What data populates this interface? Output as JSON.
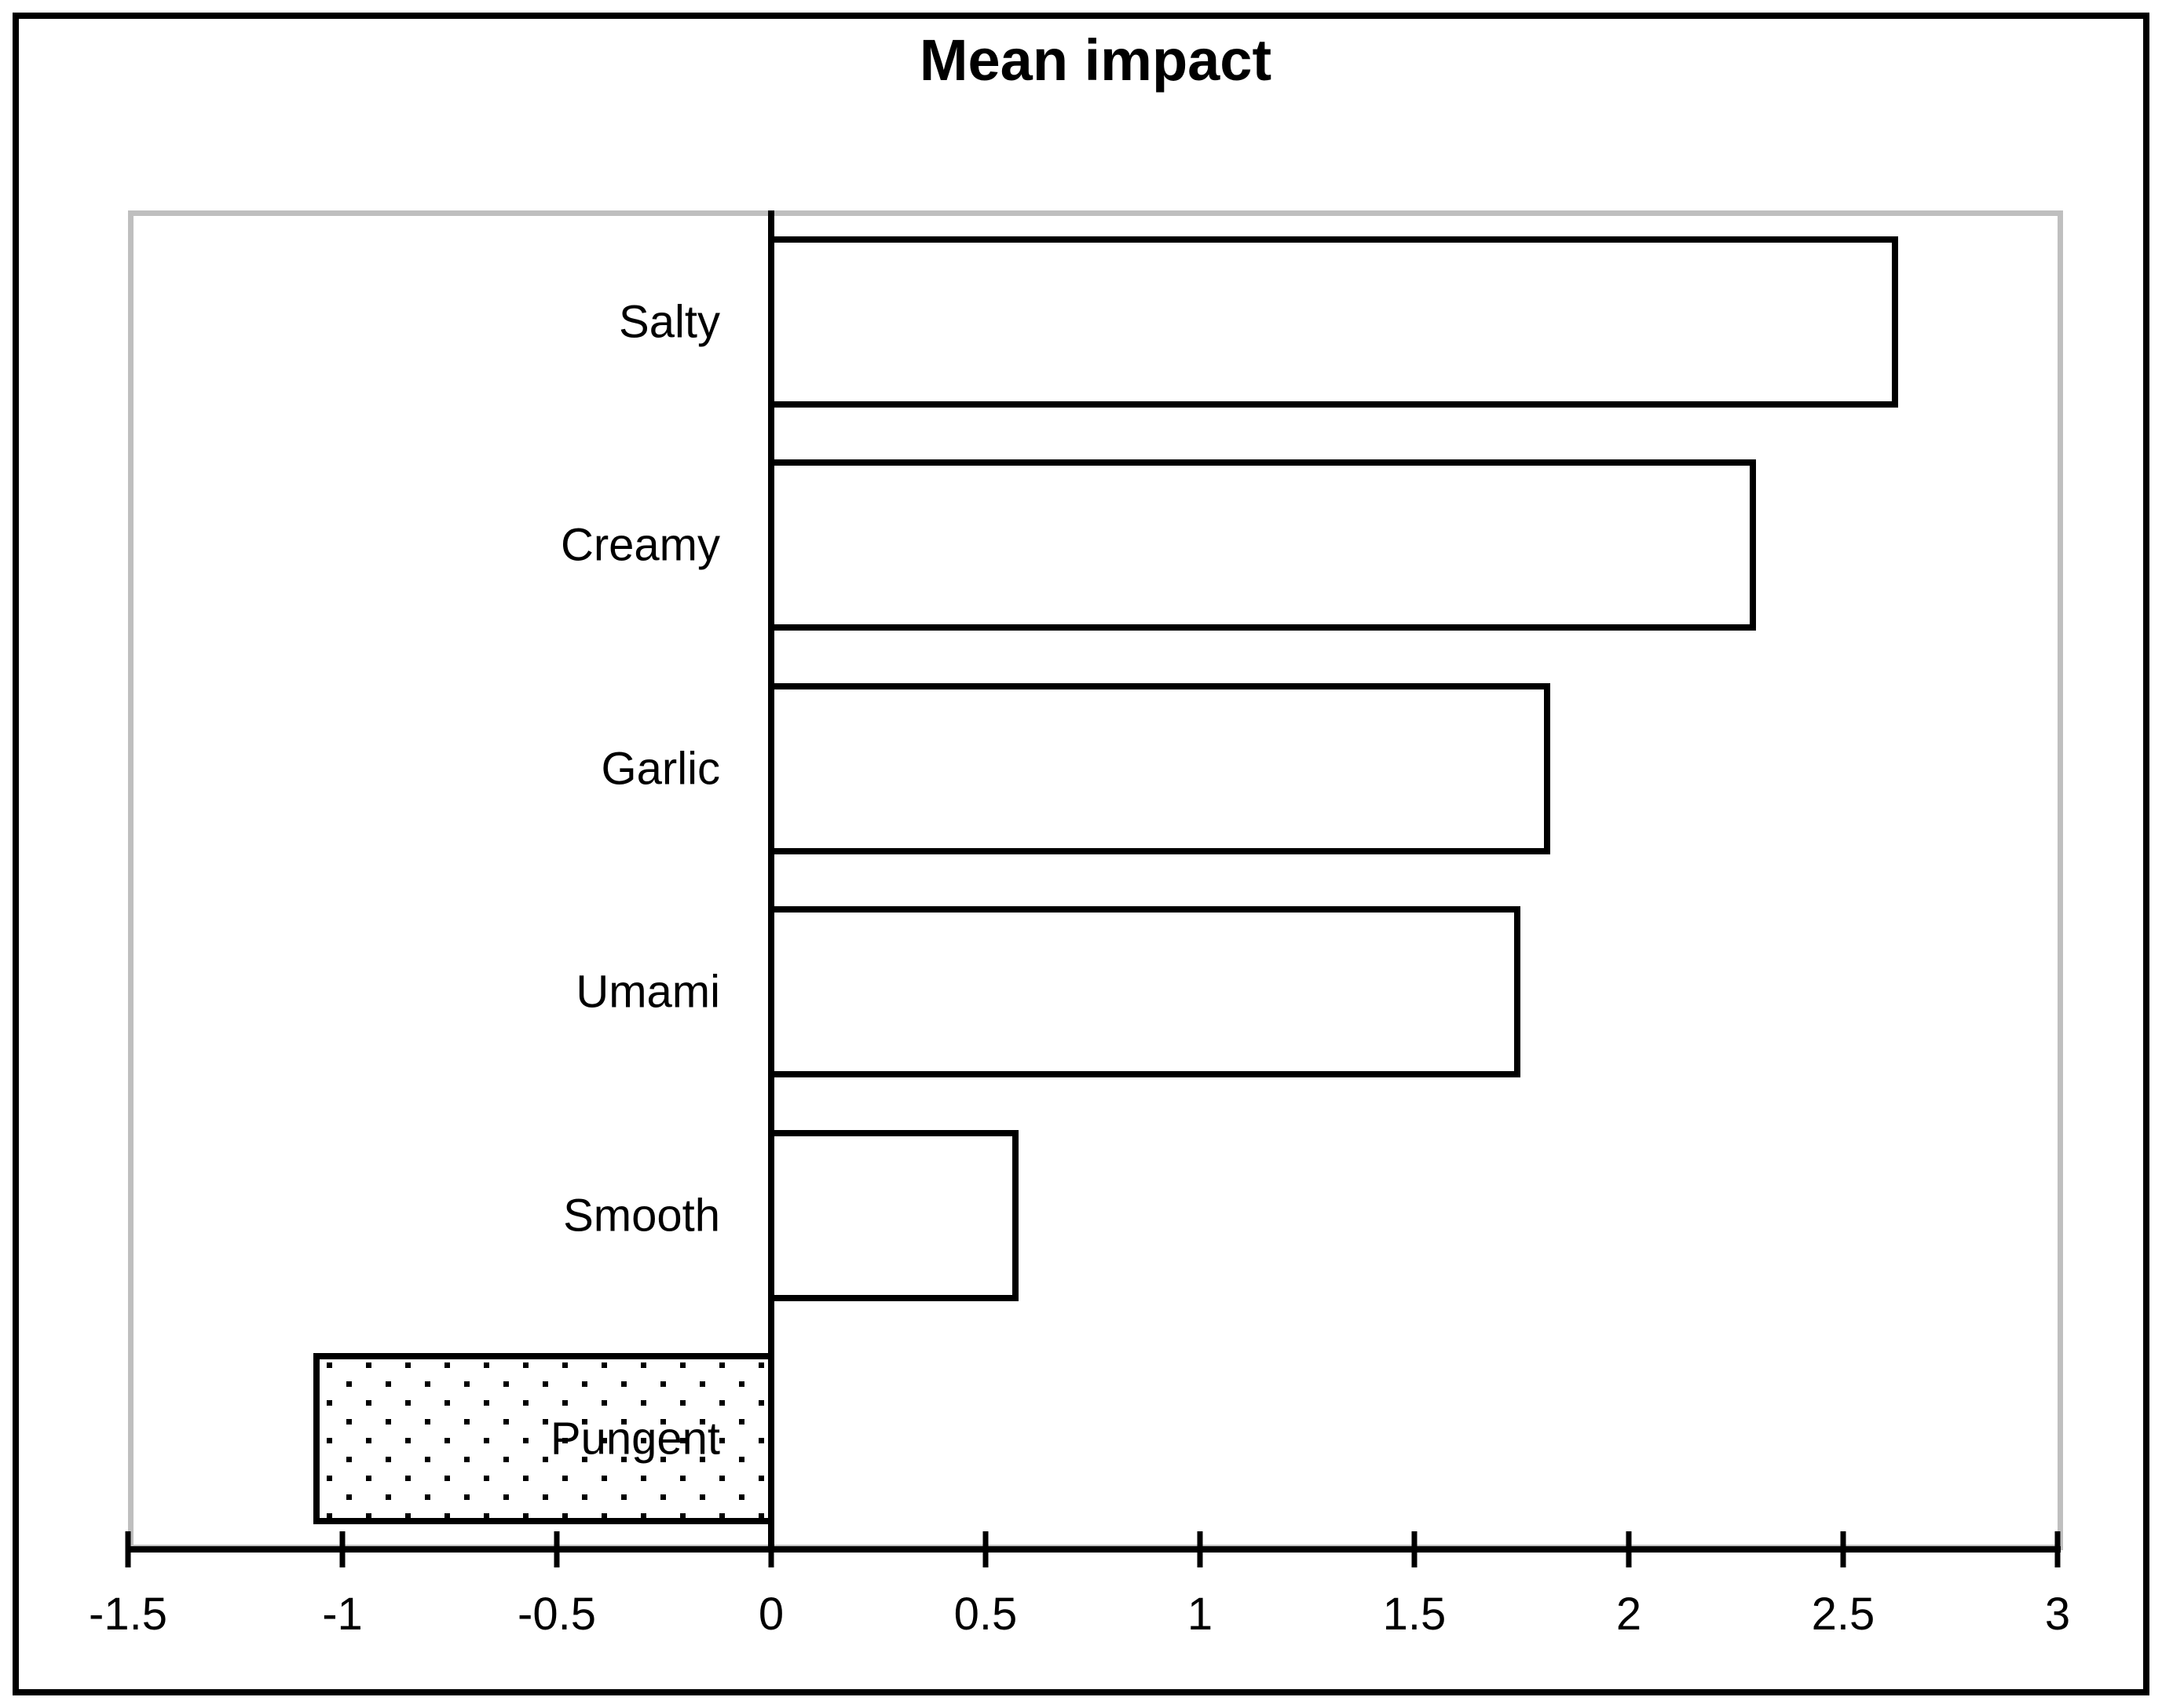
{
  "chart": {
    "title": "Mean impact",
    "axis": {
      "min": -1.5,
      "max": 3,
      "step": 0.5,
      "tick_labels": [
        "-1.5",
        "-1",
        "-0.5",
        "0",
        "0.5",
        "1",
        "1.5",
        "2",
        "2.5",
        "3"
      ]
    },
    "colors": {
      "bar_border": "#000000",
      "bar_fill": "#ffffff",
      "plot_border": "#bfbfbf",
      "axis": "#000000",
      "text": "#000000"
    }
  },
  "chart_data": {
    "type": "bar",
    "orientation": "horizontal",
    "title": "Mean impact",
    "categories": [
      "Salty",
      "Creamy",
      "Garlic",
      "Umami",
      "Smooth",
      "Pungent"
    ],
    "values": [
      2.62,
      2.29,
      1.81,
      1.74,
      0.57,
      -1.06
    ],
    "bar_fill_styles": [
      "outline",
      "outline",
      "outline",
      "outline",
      "outline",
      "dotted"
    ],
    "xlim": [
      -1.5,
      3
    ],
    "xticks": [
      -1.5,
      -1,
      -0.5,
      0,
      0.5,
      1,
      1.5,
      2,
      2.5,
      3
    ],
    "xlabel": "",
    "ylabel": "",
    "grid": false,
    "legend": false
  }
}
